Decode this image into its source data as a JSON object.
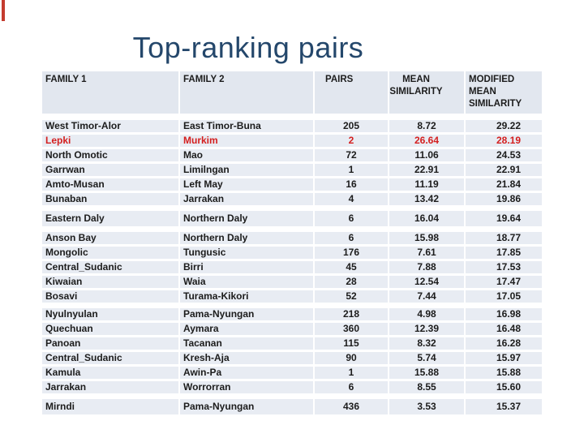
{
  "slide": {
    "title": "Top-ranking pairs"
  },
  "colors": {
    "title": "#24476b",
    "highlight": "#d41f1f",
    "header_bg": "#e2e7ef",
    "row_bg": "#e8ecf3",
    "text": "#1c1c1c",
    "accent_red": "#c43b2e"
  },
  "table": {
    "columns": [
      "FAMILY 1",
      "FAMILY 2",
      "PAIRS",
      "MEAN SIMILARITY",
      "MODIFIED MEAN SIMILARITY"
    ],
    "groups": [
      {
        "rows": [
          {
            "f1": "West Timor-Alor",
            "f2": "East Timor-Buna",
            "pairs": "205",
            "mean": "8.72",
            "mod": "29.22",
            "highlight": false
          },
          {
            "f1": "Lepki",
            "f2": "Murkim",
            "pairs": "2",
            "mean": "26.64",
            "mod": "28.19",
            "highlight": true
          },
          {
            "f1": "North Omotic",
            "f2": "Mao",
            "pairs": "72",
            "mean": "11.06",
            "mod": "24.53",
            "highlight": false
          },
          {
            "f1": "Garrwan",
            "f2": "Limilngan",
            "pairs": "1",
            "mean": "22.91",
            "mod": "22.91",
            "highlight": false
          },
          {
            "f1": "Amto-Musan",
            "f2": "Left May",
            "pairs": "16",
            "mean": "11.19",
            "mod": "21.84",
            "highlight": false
          },
          {
            "f1": "Bunaban",
            "f2": "Jarrakan",
            "pairs": "4",
            "mean": "13.42",
            "mod": "19.86",
            "highlight": false
          }
        ]
      },
      {
        "rows": [
          {
            "f1": "Eastern Daly",
            "f2": "Northern Daly",
            "pairs": "6",
            "mean": "16.04",
            "mod": "19.64",
            "highlight": false
          }
        ]
      },
      {
        "rows": [
          {
            "f1": "Anson Bay",
            "f2": "Northern Daly",
            "pairs": "6",
            "mean": "15.98",
            "mod": "18.77",
            "highlight": false
          },
          {
            "f1": "Mongolic",
            "f2": "Tungusic",
            "pairs": "176",
            "mean": "7.61",
            "mod": "17.85",
            "highlight": false
          },
          {
            "f1": "Central_Sudanic",
            "f2": "Birri",
            "pairs": "45",
            "mean": "7.88",
            "mod": "17.53",
            "highlight": false
          },
          {
            "f1": "Kiwaian",
            "f2": "Waia",
            "pairs": "28",
            "mean": "12.54",
            "mod": "17.47",
            "highlight": false
          },
          {
            "f1": "Bosavi",
            "f2": "Turama-Kikori",
            "pairs": "52",
            "mean": "7.44",
            "mod": "17.05",
            "highlight": false
          }
        ]
      },
      {
        "rows": [
          {
            "f1": "Nyulnyulan",
            "f2": "Pama-Nyungan",
            "pairs": "218",
            "mean": "4.98",
            "mod": "16.98",
            "highlight": false
          },
          {
            "f1": "Quechuan",
            "f2": "Aymara",
            "pairs": "360",
            "mean": "12.39",
            "mod": "16.48",
            "highlight": false
          },
          {
            "f1": "Panoan",
            "f2": "Tacanan",
            "pairs": "115",
            "mean": "8.32",
            "mod": "16.28",
            "highlight": false
          },
          {
            "f1": "Central_Sudanic",
            "f2": "Kresh-Aja",
            "pairs": "90",
            "mean": "5.74",
            "mod": "15.97",
            "highlight": false
          },
          {
            "f1": "Kamula",
            "f2": "Awin-Pa",
            "pairs": "1",
            "mean": "15.88",
            "mod": "15.88",
            "highlight": false
          },
          {
            "f1": "Jarrakan",
            "f2": "Worrorran",
            "pairs": "6",
            "mean": "8.55",
            "mod": "15.60",
            "highlight": false
          }
        ]
      },
      {
        "rows": [
          {
            "f1": "Mirndi",
            "f2": "Pama-Nyungan",
            "pairs": "436",
            "mean": "3.53",
            "mod": "15.37",
            "highlight": false
          }
        ]
      }
    ]
  }
}
